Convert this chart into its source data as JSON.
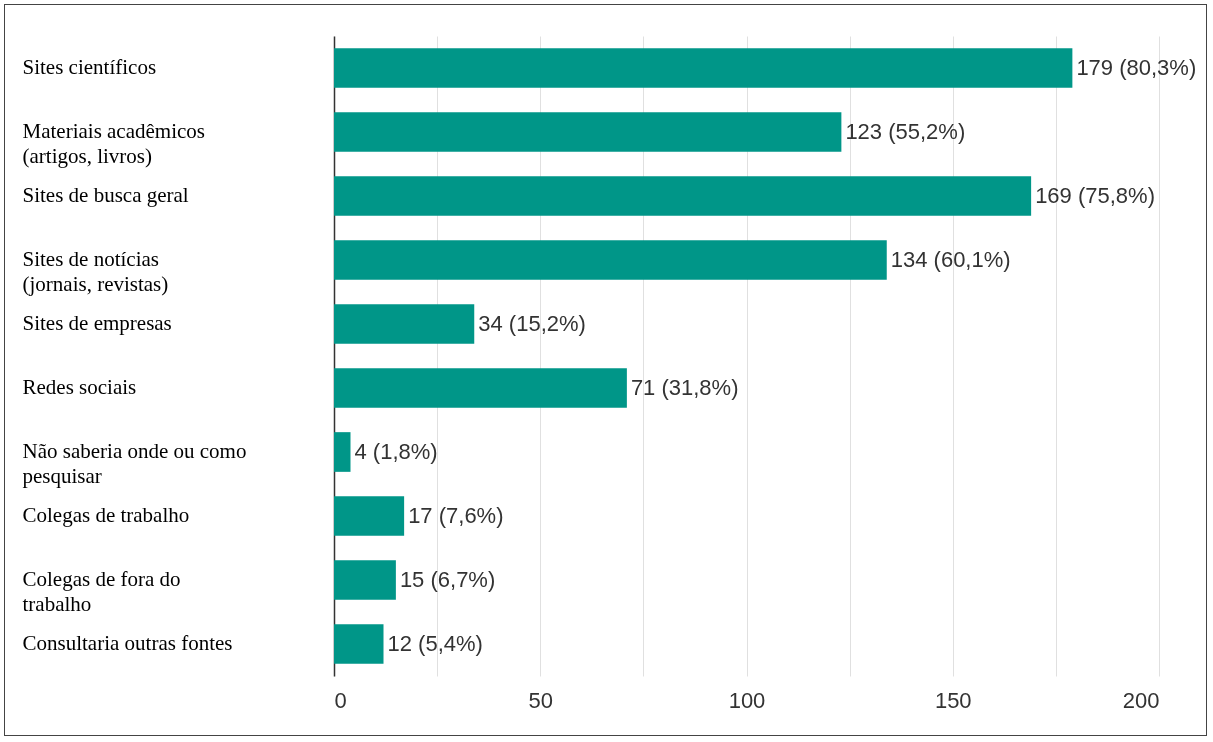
{
  "chart_data": {
    "type": "bar",
    "orientation": "horizontal",
    "categories": [
      "Sites científicos",
      "Materiais acadêmicos (artigos, livros)",
      "Sites de busca geral",
      "Sites de notícias (jornais, revistas)",
      "Sites de empresas",
      "Redes sociais",
      "Não saberia onde ou como pesquisar",
      "Colegas de trabalho",
      "Colegas de fora do trabalho",
      "Consultaria outras fontes"
    ],
    "values": [
      179,
      123,
      169,
      134,
      34,
      71,
      4,
      17,
      15,
      12
    ],
    "value_labels": [
      "179 (80,3%)",
      "123 (55,2%)",
      "169 (75,8%)",
      "134 (60,1%)",
      "34 (15,2%)",
      "71 (31,8%)",
      "4 (1,8%)",
      "17 (7,6%)",
      "15 (6,7%)",
      "12 (5,4%)"
    ],
    "color": "#009688",
    "xlim": [
      0,
      200
    ],
    "xticks": [
      0,
      {
        "value": 25,
        "label": null
      },
      50,
      {
        "value": 75,
        "label": null
      },
      100,
      {
        "value": 125,
        "label": null
      },
      150,
      {
        "value": 175,
        "label": null
      },
      200
    ],
    "grid": "x"
  }
}
